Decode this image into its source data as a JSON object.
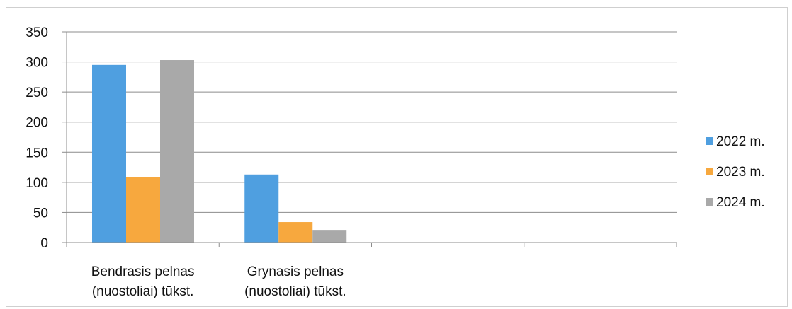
{
  "chart_data": {
    "type": "bar",
    "categories": [
      [
        "Bendrasis pelnas",
        "(nuostoliai) tūkst."
      ],
      [
        "Grynasis pelnas",
        "(nuostoliai) tūkst."
      ],
      [
        "",
        ""
      ],
      [
        "",
        ""
      ]
    ],
    "series": [
      {
        "name": "2022 m.",
        "color": "#4f9fe0",
        "values": [
          295,
          113,
          null,
          null
        ]
      },
      {
        "name": "2023 m.",
        "color": "#f7a83e",
        "values": [
          109,
          34,
          null,
          null
        ]
      },
      {
        "name": "2024 m.",
        "color": "#a9a9a9",
        "values": [
          303,
          21,
          null,
          null
        ]
      }
    ],
    "yticks": [
      "0",
      "50",
      "100",
      "150",
      "200",
      "250",
      "300",
      "350"
    ],
    "ylim": [
      0,
      350
    ],
    "grid": true,
    "legend": "right",
    "title": "",
    "xlabel": "",
    "ylabel": ""
  }
}
